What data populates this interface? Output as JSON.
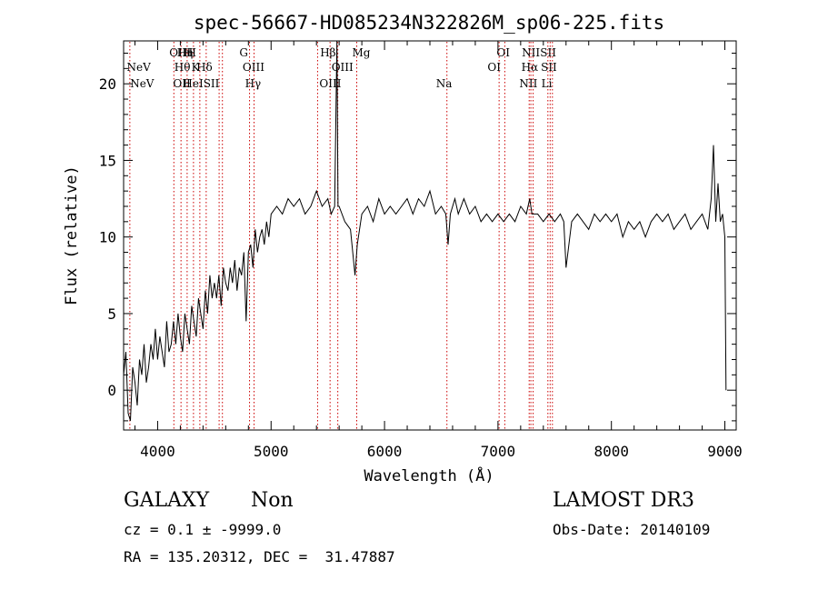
{
  "chart_data": {
    "type": "line",
    "title": "spec-56667-HD085234N322826M_sp06-225.fits",
    "xlabel": "Wavelength (Å)",
    "ylabel": "Flux (relative)",
    "xlim": [
      3700,
      9100
    ],
    "ylim": [
      -2.6,
      22.8
    ],
    "xticks": [
      4000,
      5000,
      6000,
      7000,
      8000,
      9000
    ],
    "yticks": [
      0,
      5,
      10,
      15,
      20
    ],
    "grid": false,
    "line_color": "#000000",
    "marker_color": "#cc0000",
    "series": [
      {
        "x": [
          3700,
          3720,
          3740,
          3760,
          3780,
          3800,
          3820,
          3840,
          3860,
          3880,
          3900,
          3920,
          3940,
          3960,
          3980,
          4000,
          4020,
          4040,
          4060,
          4080,
          4100,
          4120,
          4140,
          4160,
          4180,
          4200,
          4220,
          4240,
          4260,
          4280,
          4300,
          4320,
          4340,
          4360,
          4380,
          4400,
          4420,
          4440,
          4460,
          4480,
          4500,
          4520,
          4540,
          4560,
          4580,
          4600,
          4620,
          4640,
          4660,
          4680,
          4700,
          4720,
          4740,
          4760,
          4780,
          4800,
          4820,
          4840,
          4860,
          4880,
          4900,
          4920,
          4940,
          4960,
          4980,
          5000,
          5050,
          5100,
          5150,
          5200,
          5250,
          5300,
          5350,
          5400,
          5450,
          5500,
          5530,
          5560,
          5580,
          5590,
          5600,
          5650,
          5700,
          5740,
          5760,
          5800,
          5850,
          5900,
          5950,
          6000,
          6050,
          6100,
          6150,
          6200,
          6250,
          6300,
          6350,
          6400,
          6450,
          6500,
          6540,
          6560,
          6580,
          6620,
          6650,
          6700,
          6750,
          6800,
          6850,
          6900,
          6950,
          7000,
          7050,
          7100,
          7150,
          7200,
          7250,
          7280,
          7300,
          7350,
          7400,
          7450,
          7500,
          7550,
          7580,
          7600,
          7650,
          7700,
          7750,
          7800,
          7850,
          7900,
          7950,
          8000,
          8050,
          8100,
          8150,
          8200,
          8250,
          8300,
          8350,
          8400,
          8450,
          8500,
          8550,
          8600,
          8650,
          8700,
          8750,
          8800,
          8850,
          8880,
          8900,
          8920,
          8940,
          8960,
          8980,
          9000,
          9010
        ],
        "y": [
          1.0,
          2.5,
          -1.5,
          -2.0,
          1.5,
          0.5,
          -1.0,
          2.0,
          1.0,
          3.0,
          0.5,
          1.5,
          3.0,
          2.0,
          4.0,
          2.0,
          3.5,
          2.5,
          1.5,
          4.5,
          2.5,
          3.0,
          4.5,
          3.0,
          5.0,
          3.5,
          2.5,
          5.0,
          4.0,
          3.0,
          5.5,
          4.5,
          3.5,
          6.0,
          5.0,
          4.0,
          6.5,
          5.0,
          7.5,
          6.0,
          7.0,
          6.0,
          7.5,
          5.5,
          8.0,
          7.0,
          6.5,
          8.0,
          7.0,
          8.5,
          6.5,
          8.0,
          7.5,
          9.0,
          4.5,
          9.0,
          9.5,
          8.0,
          10.5,
          9.0,
          10.0,
          10.5,
          9.5,
          11.0,
          10.0,
          11.5,
          12.0,
          11.5,
          12.5,
          12.0,
          12.5,
          11.5,
          12.0,
          13.0,
          12.0,
          12.5,
          11.5,
          12.0,
          23.0,
          12.0,
          12.0,
          11.0,
          10.5,
          7.5,
          9.5,
          11.5,
          12.0,
          11.0,
          12.5,
          11.5,
          12.0,
          11.5,
          12.0,
          12.5,
          11.5,
          12.5,
          12.0,
          13.0,
          11.5,
          12.0,
          11.5,
          9.5,
          11.5,
          12.5,
          11.5,
          12.5,
          11.5,
          12.0,
          11.0,
          11.5,
          11.0,
          11.5,
          11.0,
          11.5,
          11.0,
          12.0,
          11.5,
          12.5,
          11.5,
          11.5,
          11.0,
          11.5,
          11.0,
          11.5,
          11.0,
          8.0,
          11.0,
          11.5,
          11.0,
          10.5,
          11.5,
          11.0,
          11.5,
          11.0,
          11.5,
          10.0,
          11.0,
          10.5,
          11.0,
          10.0,
          11.0,
          11.5,
          11.0,
          11.5,
          10.5,
          11.0,
          11.5,
          10.5,
          11.0,
          11.5,
          10.5,
          12.5,
          16.0,
          11.0,
          13.5,
          11.0,
          11.5,
          10.0,
          0.0
        ]
      }
    ],
    "lines": [
      {
        "x": 3728,
        "label": "NeV",
        "row": 1
      },
      {
        "x": 3758,
        "label": "NeV",
        "row": 2
      },
      {
        "x": 4102,
        "label": "OIIH",
        "row": 0
      },
      {
        "x": 4170,
        "label": "Hη",
        "row": 0
      },
      {
        "x": 4228,
        "label": "H",
        "row": 0
      },
      {
        "x": 4147,
        "label": "Hθ",
        "row": 1
      },
      {
        "x": 4298,
        "label": "K",
        "row": 1
      },
      {
        "x": 4342,
        "label": "Hδ",
        "row": 1
      },
      {
        "x": 4136,
        "label": "OII",
        "row": 2
      },
      {
        "x": 4224,
        "label": "HeI",
        "row": 2
      },
      {
        "x": 4403,
        "label": "SII",
        "row": 2
      },
      {
        "x": 4721,
        "label": "G",
        "row": 0
      },
      {
        "x": 4749,
        "label": "OIII",
        "row": 1
      },
      {
        "x": 4770,
        "label": "Hγ",
        "row": 2
      },
      {
        "x": 5432,
        "label": "Hβ",
        "row": 0
      },
      {
        "x": 5532,
        "label": "OIII",
        "row": 1
      },
      {
        "x": 5426,
        "label": "OIII",
        "row": 2
      },
      {
        "x": 5715,
        "label": "Mg",
        "row": 0
      },
      {
        "x": 6454,
        "label": "Na",
        "row": 2
      },
      {
        "x": 6988,
        "label": "OI",
        "row": 0
      },
      {
        "x": 6908,
        "label": "OI",
        "row": 1
      },
      {
        "x": 7210,
        "label": "NII",
        "row": 0
      },
      {
        "x": 7206,
        "label": "Hα",
        "row": 1
      },
      {
        "x": 7188,
        "label": "NII",
        "row": 2
      },
      {
        "x": 7372,
        "label": "SII",
        "row": 0
      },
      {
        "x": 7378,
        "label": "SII",
        "row": 1
      },
      {
        "x": 7382,
        "label": "Li",
        "row": 2
      }
    ],
    "marker_x": [
      3755,
      4143,
      4206,
      4260,
      4316,
      4372,
      4428,
      4542,
      4571,
      4810,
      4850,
      5410,
      5520,
      5588,
      5755,
      6550,
      7010,
      7060,
      7275,
      7290,
      7310,
      7440,
      7460,
      7480
    ]
  },
  "info": {
    "objtype": "GALAXY",
    "subclass": "Non",
    "cz": "cz = 0.1 ± -9999.0",
    "radec": "RA = 135.20312, DEC =  31.47887",
    "survey": "LAMOST DR3",
    "obsdate": "Obs-Date: 20140109"
  }
}
